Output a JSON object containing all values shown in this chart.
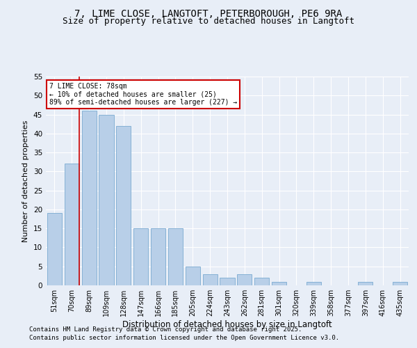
{
  "title_line1": "7, LIME CLOSE, LANGTOFT, PETERBOROUGH, PE6 9RA",
  "title_line2": "Size of property relative to detached houses in Langtoft",
  "xlabel": "Distribution of detached houses by size in Langtoft",
  "ylabel": "Number of detached properties",
  "categories": [
    "51sqm",
    "70sqm",
    "89sqm",
    "109sqm",
    "128sqm",
    "147sqm",
    "166sqm",
    "185sqm",
    "205sqm",
    "224sqm",
    "243sqm",
    "262sqm",
    "281sqm",
    "301sqm",
    "320sqm",
    "339sqm",
    "358sqm",
    "377sqm",
    "397sqm",
    "416sqm",
    "435sqm"
  ],
  "values": [
    19,
    32,
    46,
    45,
    42,
    15,
    15,
    15,
    5,
    3,
    2,
    3,
    2,
    1,
    0,
    1,
    0,
    0,
    1,
    0,
    1
  ],
  "bar_color": "#b8cfe8",
  "bar_edge_color": "#7aaad0",
  "background_color": "#e8eef7",
  "grid_color": "#ffffff",
  "annotation_line1": "7 LIME CLOSE: 78sqm",
  "annotation_line2": "← 10% of detached houses are smaller (25)",
  "annotation_line3": "89% of semi-detached houses are larger (227) →",
  "annotation_box_color": "#ffffff",
  "annotation_box_edge_color": "#cc0000",
  "vline_color": "#cc0000",
  "vline_x": 1.45,
  "footer_line1": "Contains HM Land Registry data © Crown copyright and database right 2025.",
  "footer_line2": "Contains public sector information licensed under the Open Government Licence v3.0.",
  "ylim": [
    0,
    55
  ],
  "yticks": [
    0,
    5,
    10,
    15,
    20,
    25,
    30,
    35,
    40,
    45,
    50,
    55
  ]
}
